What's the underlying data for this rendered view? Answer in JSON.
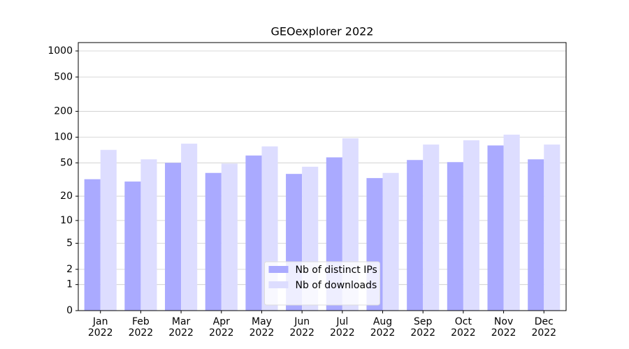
{
  "chart_data": {
    "type": "bar",
    "title": "GEOexplorer 2022",
    "categories": [
      "Jan\n2022",
      "Feb\n2022",
      "Mar\n2022",
      "Apr\n2022",
      "May\n2022",
      "Jun\n2022",
      "Jul\n2022",
      "Aug\n2022",
      "Sep\n2022",
      "Oct\n2022",
      "Nov\n2022",
      "Dec\n2022"
    ],
    "series": [
      {
        "name": "Nb of distinct IPs",
        "color": "#aaaaff",
        "values": [
          32,
          30,
          50,
          38,
          61,
          37,
          58,
          33,
          54,
          51,
          80,
          55
        ]
      },
      {
        "name": "Nb of downloads",
        "color": "#ddddff",
        "values": [
          71,
          55,
          84,
          49,
          78,
          45,
          97,
          38,
          82,
          92,
          107,
          82
        ]
      }
    ],
    "yscale": "log1p",
    "ylim": [
      0,
      1250
    ],
    "yticks": [
      0,
      1,
      2,
      5,
      10,
      20,
      50,
      100,
      200,
      500,
      1000
    ],
    "grid": true,
    "legend": "lower center"
  }
}
